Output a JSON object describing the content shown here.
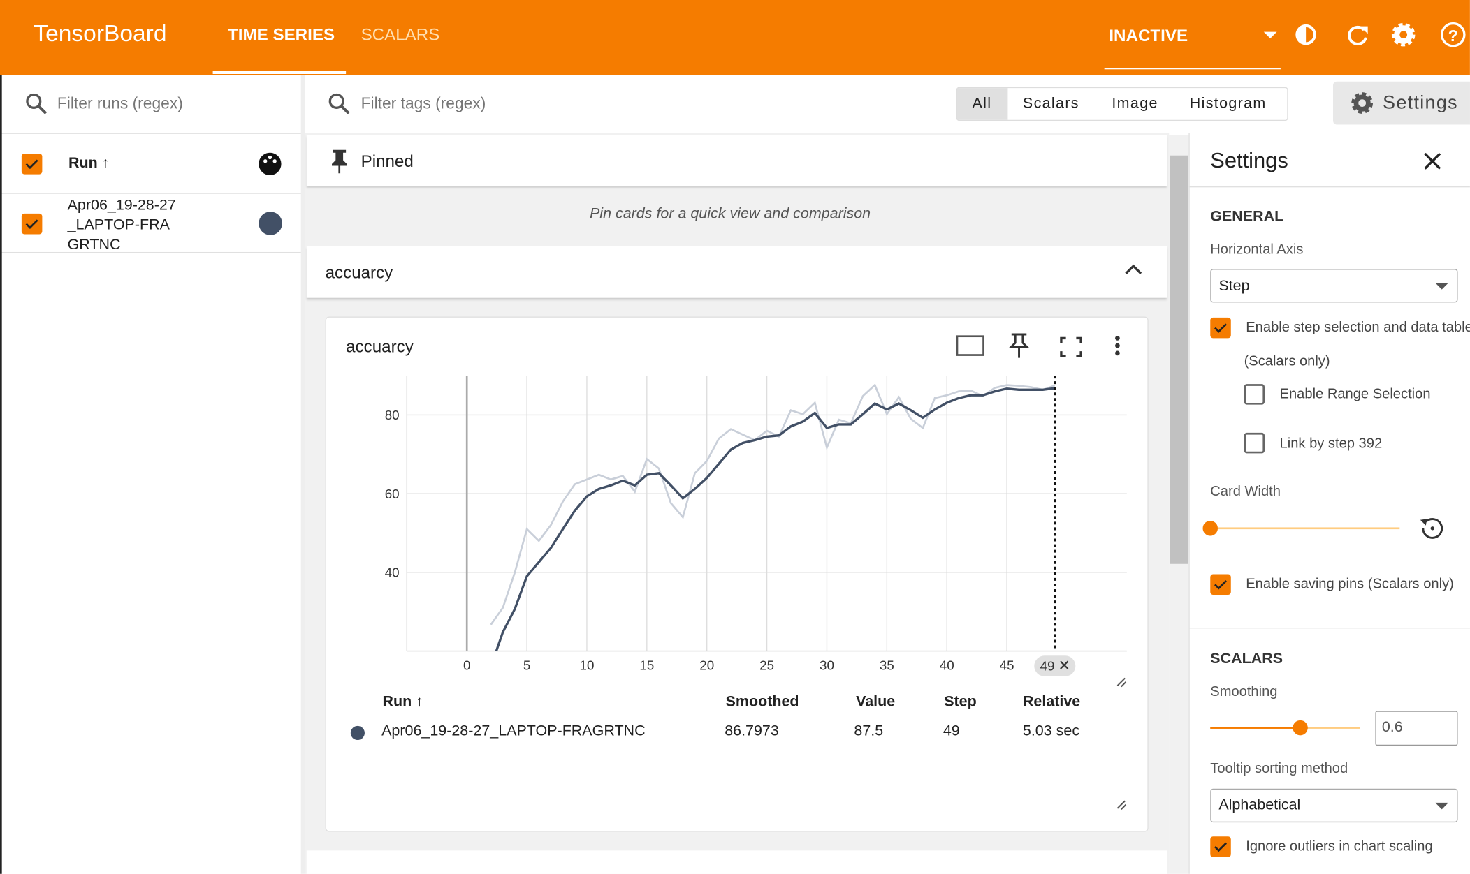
{
  "header": {
    "brand": "TensorBoard",
    "tabs": [
      "TIME SERIES",
      "SCALARS"
    ],
    "status": "INACTIVE"
  },
  "runs": {
    "filter_placeholder": "Filter runs (regex)",
    "column": "Run ↑",
    "items": [
      "Apr06_19-28-27_LAPTOP-FRAGRTNC"
    ]
  },
  "toolbar": {
    "filter_placeholder": "Filter tags (regex)",
    "types": [
      "All",
      "Scalars",
      "Image",
      "Histogram"
    ],
    "settings_button": "Settings"
  },
  "pinned": {
    "title": "Pinned",
    "empty": "Pin cards for a quick view and comparison"
  },
  "group": {
    "title": "accuarcy"
  },
  "card": {
    "title": "accuarcy",
    "chart": {
      "type": "line",
      "x": [
        2,
        3,
        4,
        5,
        6,
        7,
        8,
        9,
        10,
        11,
        12,
        13,
        14,
        15,
        16,
        17,
        18,
        19,
        20,
        21,
        22,
        23,
        24,
        25,
        26,
        27,
        28,
        29,
        30,
        31,
        32,
        33,
        34,
        35,
        36,
        37,
        38,
        39,
        40,
        41,
        42,
        43,
        44,
        45,
        46,
        47,
        48,
        49
      ],
      "series": [
        {
          "name": "raw",
          "color": "#c9cfd9",
          "values": [
            26.7,
            31,
            40,
            51,
            48,
            52,
            58,
            62.4,
            63.6,
            64.8,
            63.6,
            64.5,
            60.5,
            68.8,
            66.4,
            57.6,
            54,
            65.2,
            68.3,
            74,
            76.4,
            75,
            73.6,
            76,
            74.5,
            81.2,
            80.2,
            83.1,
            71.7,
            78.8,
            77.9,
            84.8,
            87.6,
            80.2,
            84.5,
            79,
            76.7,
            84.3,
            85,
            86,
            86.2,
            84.8,
            86.9,
            87.6,
            87.4,
            87.1,
            86.4,
            87.5
          ]
        },
        {
          "name": "smoothed",
          "color": "#425066",
          "values": [
            16,
            24.8,
            30.7,
            39,
            42.6,
            46.2,
            51,
            55.7,
            59.3,
            61.2,
            62.1,
            63.3,
            62.1,
            64.8,
            65.2,
            62.1,
            58.8,
            61.2,
            64,
            67.6,
            71.2,
            72.9,
            73.6,
            74.5,
            74.8,
            77.1,
            78.3,
            80.5,
            76.7,
            77.6,
            77.6,
            80.2,
            82.9,
            81.4,
            82.9,
            81.2,
            79.3,
            81.4,
            83.1,
            84.3,
            85,
            85,
            86,
            86.7,
            86.4,
            86.4,
            86.4,
            86.8
          ]
        }
      ],
      "xlim": [
        -5,
        55
      ],
      "ylim": [
        20,
        90
      ],
      "xticks": [
        0,
        5,
        10,
        15,
        20,
        25,
        30,
        35,
        40,
        45
      ],
      "yticks": [
        40,
        60,
        80
      ],
      "grid": true,
      "cursor_step": 49
    },
    "table": {
      "headers": [
        "Run ↑",
        "Smoothed",
        "Value",
        "Step",
        "Relative"
      ],
      "rows": [
        [
          "Apr06_19-28-27_LAPTOP-FRAGRTNC",
          "86.7973",
          "87.5",
          "49",
          "5.03 sec"
        ]
      ]
    }
  },
  "settings": {
    "title": "Settings",
    "general": "GENERAL",
    "horizontal_axis": "Horizontal Axis",
    "axis_value": "Step",
    "step_selection": "Enable step selection and data table",
    "scalars_only": "(Scalars only)",
    "range_selection": "Enable Range Selection",
    "link_by_step": "Link by step 392",
    "card_width": "Card Width",
    "saving_pins": "Enable saving pins (Scalars only)",
    "scalars": "SCALARS",
    "smoothing": "Smoothing",
    "smoothing_value": 0.6,
    "tooltip_sorting": "Tooltip sorting method",
    "sorting_value": "Alphabetical",
    "ignore_outliers": "Ignore outliers in chart scaling"
  }
}
